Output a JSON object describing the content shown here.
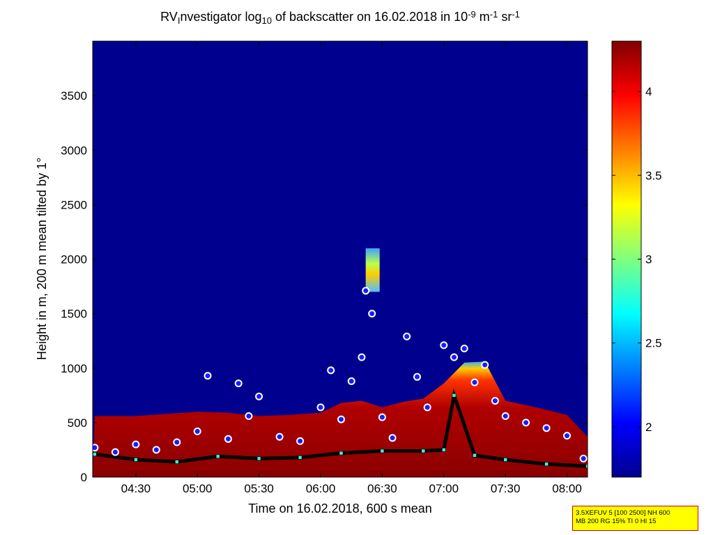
{
  "chart_data": {
    "type": "heatmap",
    "title": {
      "pre": "RV",
      "sub1": "I",
      "mid": "nvestigator log",
      "sub2": "10",
      "post1": " of backscatter on 16.02.2018 in 10",
      "sup1": "-9",
      "post2": " m",
      "sup2": "-1",
      "post3": " sr",
      "sup3": "-1"
    },
    "xlabel": "Time on 16.02.2018, 600 s mean",
    "ylabel": "Height in m, 200 m mean tilted by 1°",
    "x_range": [
      "04:09",
      "08:10"
    ],
    "x_ticks": [
      "04:30",
      "05:00",
      "05:30",
      "06:00",
      "06:30",
      "07:00",
      "07:30",
      "08:00"
    ],
    "y_range": [
      0,
      4000
    ],
    "y_ticks": [
      0,
      500,
      1000,
      1500,
      2000,
      2500,
      3000,
      3500
    ],
    "colorbar": {
      "range": [
        1.7,
        4.3
      ],
      "ticks": [
        "2",
        "2.5",
        "3",
        "3.5",
        "4"
      ],
      "colormap": "jet"
    },
    "background_color": "#00008f",
    "layer_top_m": [
      [
        "04:10",
        560
      ],
      [
        "04:30",
        560
      ],
      [
        "04:45",
        580
      ],
      [
        "05:00",
        600
      ],
      [
        "05:15",
        590
      ],
      [
        "05:30",
        560
      ],
      [
        "05:45",
        570
      ],
      [
        "06:00",
        590
      ],
      [
        "06:10",
        680
      ],
      [
        "06:20",
        700
      ],
      [
        "06:30",
        640
      ],
      [
        "06:40",
        690
      ],
      [
        "06:50",
        720
      ],
      [
        "07:00",
        860
      ],
      [
        "07:10",
        1050
      ],
      [
        "07:20",
        1060
      ],
      [
        "07:30",
        700
      ],
      [
        "07:45",
        640
      ],
      [
        "08:00",
        570
      ],
      [
        "08:10",
        370
      ]
    ],
    "plume": {
      "time": "06:25",
      "height_min_m": 1700,
      "height_max_m": 2100
    },
    "cloud_base_m": [
      [
        "04:10",
        270
      ],
      [
        "04:20",
        230
      ],
      [
        "04:30",
        300
      ],
      [
        "04:40",
        250
      ],
      [
        "04:50",
        320
      ],
      [
        "05:00",
        420
      ],
      [
        "05:05",
        930
      ],
      [
        "05:15",
        350
      ],
      [
        "05:20",
        860
      ],
      [
        "05:25",
        560
      ],
      [
        "05:30",
        740
      ],
      [
        "05:40",
        370
      ],
      [
        "05:50",
        330
      ],
      [
        "06:00",
        640
      ],
      [
        "06:05",
        980
      ],
      [
        "06:10",
        530
      ],
      [
        "06:15",
        880
      ],
      [
        "06:20",
        1100
      ],
      [
        "06:22",
        1710
      ],
      [
        "06:25",
        1500
      ],
      [
        "06:30",
        550
      ],
      [
        "06:35",
        360
      ],
      [
        "06:42",
        1290
      ],
      [
        "06:47",
        920
      ],
      [
        "06:52",
        640
      ],
      [
        "07:00",
        1210
      ],
      [
        "07:05",
        1100
      ],
      [
        "07:10",
        1180
      ],
      [
        "07:15",
        870
      ],
      [
        "07:20",
        1030
      ],
      [
        "07:25",
        700
      ],
      [
        "07:30",
        560
      ],
      [
        "07:40",
        500
      ],
      [
        "07:50",
        450
      ],
      [
        "08:00",
        380
      ],
      [
        "08:08",
        170
      ]
    ],
    "surface_layer_m": [
      [
        "04:10",
        210
      ],
      [
        "04:30",
        160
      ],
      [
        "04:50",
        140
      ],
      [
        "05:10",
        190
      ],
      [
        "05:30",
        170
      ],
      [
        "05:50",
        180
      ],
      [
        "06:10",
        220
      ],
      [
        "06:30",
        240
      ],
      [
        "06:50",
        240
      ],
      [
        "07:00",
        250
      ],
      [
        "07:05",
        750
      ],
      [
        "07:15",
        200
      ],
      [
        "07:30",
        160
      ],
      [
        "07:50",
        120
      ],
      [
        "08:10",
        100
      ]
    ]
  },
  "info_box": {
    "line1": "3.5XEFUV 5 [100 2500] NH 600",
    "line2": "MB 200 RG 15% TI 0 HI 15",
    "border_color": "#cc0000",
    "background_color": "#ffff00"
  }
}
